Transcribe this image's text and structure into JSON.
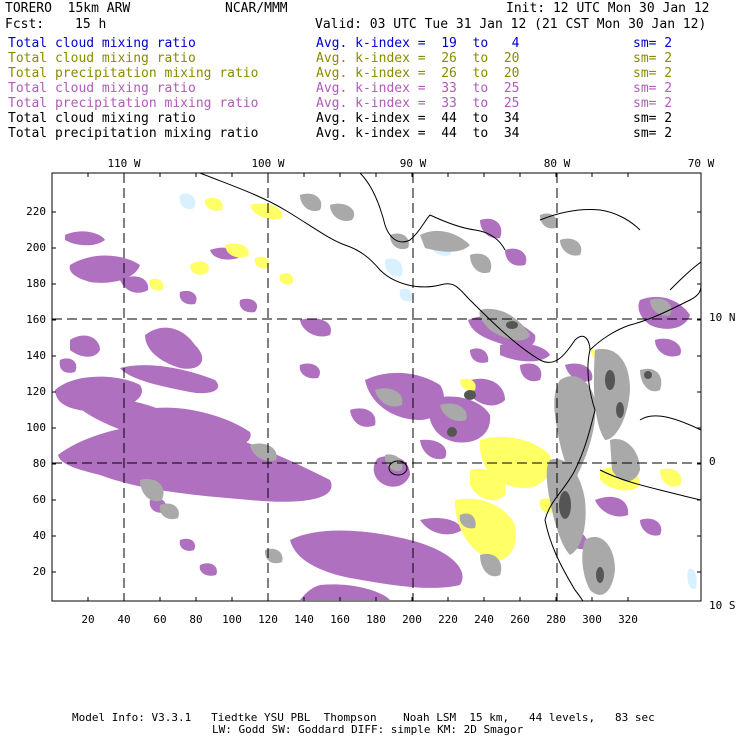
{
  "header": {
    "model": "TORERO  15km ARW",
    "center": "NCAR/MMM",
    "init": "Init: 12 UTC Mon 30 Jan 12",
    "fcst_label": "Fcst:",
    "fcst_value": "15 h",
    "valid": "Valid: 03 UTC Tue 31 Jan 12 (21 CST Mon 30 Jan 12)"
  },
  "legend": [
    {
      "field": "Total cloud mixing ratio",
      "kindex": "Avg. k-index =  19  to   4",
      "sm": "sm= 2",
      "color": "#0000cc"
    },
    {
      "field": "Total cloud mixing ratio",
      "kindex": "Avg. k-index =  26  to  20",
      "sm": "sm= 2",
      "color": "#8b8b00"
    },
    {
      "field": "Total precipitation mixing ratio",
      "kindex": "Avg. k-index =  26  to  20",
      "sm": "sm= 2",
      "color": "#8b8b00"
    },
    {
      "field": "Total cloud mixing ratio",
      "kindex": "Avg. k-index =  33  to  25",
      "sm": "sm= 2",
      "color": "#b05cb8"
    },
    {
      "field": "Total precipitation mixing ratio",
      "kindex": "Avg. k-index =  33  to  25",
      "sm": "sm= 2",
      "color": "#b05cb8"
    },
    {
      "field": "Total cloud mixing ratio",
      "kindex": "Avg. k-index =  44  to  34",
      "sm": "sm= 2",
      "color": "#000000"
    },
    {
      "field": "Total precipitation mixing ratio",
      "kindex": "Avg. k-index =  44  to  34",
      "sm": "sm= 2",
      "color": "#000000"
    }
  ],
  "map": {
    "lon_labels": [
      "110 W",
      "100 W",
      "90 W",
      "80 W",
      "70 W"
    ],
    "lat_labels": [
      "10 N",
      "0",
      "10 S"
    ],
    "x_ticks": [
      "20",
      "40",
      "60",
      "80",
      "100",
      "120",
      "140",
      "160",
      "180",
      "200",
      "220",
      "240",
      "260",
      "280",
      "300",
      "320"
    ],
    "y_ticks": [
      "20",
      "40",
      "60",
      "80",
      "100",
      "120",
      "140",
      "160",
      "180",
      "200",
      "220"
    ],
    "colors": {
      "purple": "#b070c0",
      "yellow": "#ffff66",
      "gray": "#a9a9a9",
      "dark_gray": "#555555",
      "light_blue": "#d8f0ff",
      "outline": "#000000"
    }
  },
  "footer": {
    "line1": "Model Info: V3.3.1   Tiedtke YSU PBL  Thompson    Noah LSM  15 km,   44 levels,   83 sec",
    "line2": "LW: Godd SW: Goddard DIFF: simple KM: 2D Smagor"
  }
}
